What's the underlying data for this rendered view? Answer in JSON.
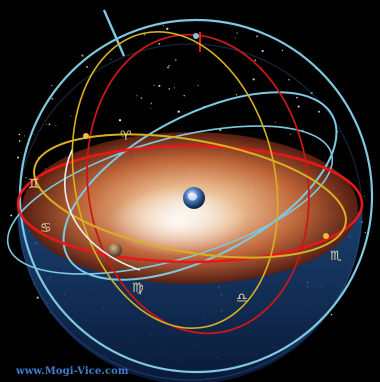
{
  "watermark": {
    "text": "www.Mogi-Vice.com",
    "color": "#3f7fd0"
  },
  "scene": {
    "background": "#000000",
    "subject": "armillary-sphere",
    "colors": {
      "horizon_disc": "#e8a070",
      "lower_hemisphere": "#2a5a9a",
      "red_circle": "#e81818",
      "cyan_circle": "#7ec8e0",
      "yellow_circle": "#d8b020",
      "white_circle": "#f0f0f0",
      "stars": "#ffffff"
    },
    "icons": [
      "earth-icon",
      "moon-icon",
      "zodiac-glyphs"
    ]
  }
}
